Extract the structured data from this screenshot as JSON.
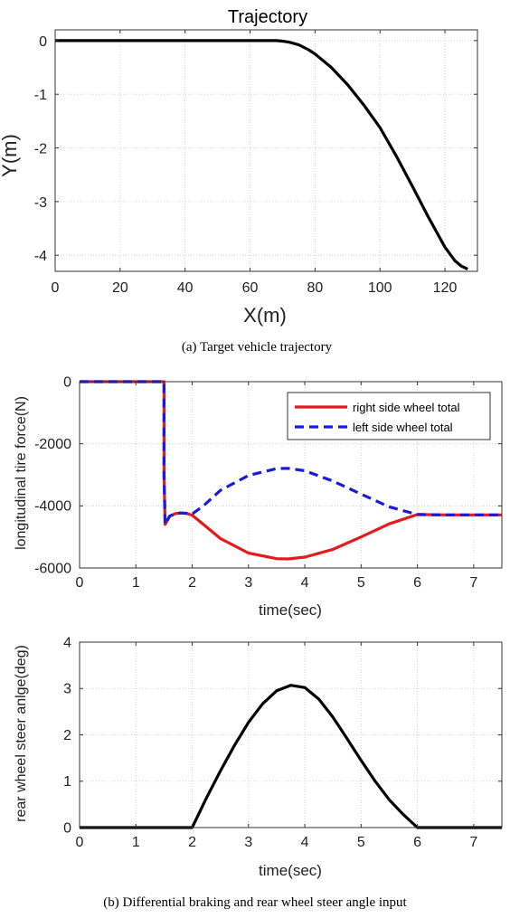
{
  "chart_data": [
    {
      "type": "line",
      "title": "Trajectory",
      "xlabel": "X(m)",
      "ylabel": "Y(m)",
      "xlim": [
        0,
        130
      ],
      "ylim": [
        -4.3,
        0.2
      ],
      "xticks": [
        0,
        20,
        40,
        60,
        80,
        100,
        120
      ],
      "yticks": [
        0,
        -1,
        -2,
        -3,
        -4
      ],
      "grid": true,
      "series": [
        {
          "color": "#000000",
          "dash": "solid",
          "x": [
            0,
            20,
            40,
            60,
            65,
            68,
            70,
            72,
            75,
            78,
            80,
            85,
            90,
            95,
            100,
            105,
            110,
            115,
            120,
            123,
            125,
            127
          ],
          "y": [
            0,
            0,
            0,
            0,
            0,
            0,
            -0.01,
            -0.03,
            -0.08,
            -0.17,
            -0.25,
            -0.5,
            -0.82,
            -1.2,
            -1.62,
            -2.15,
            -2.72,
            -3.3,
            -3.85,
            -4.1,
            -4.2,
            -4.26
          ]
        }
      ],
      "caption": "(a) Target vehicle trajectory"
    },
    {
      "type": "line",
      "ylabel": "longitudinal tire force(N)",
      "xlabel": "",
      "xlim": [
        0,
        7.5
      ],
      "ylim": [
        -6000,
        0
      ],
      "xticks": [
        0,
        1,
        2,
        3,
        4,
        5,
        6,
        7
      ],
      "yticks": [
        0,
        -2000,
        -4000,
        -6000
      ],
      "grid": true,
      "legend": "top-right",
      "series": [
        {
          "name": "right side wheel total",
          "color": "#e41a1c",
          "dash": "solid",
          "x": [
            0,
            1.5,
            1.5,
            1.52,
            1.6,
            1.7,
            1.8,
            1.9,
            2.0,
            2.2,
            2.5,
            3.0,
            3.5,
            3.7,
            4.0,
            4.5,
            5.0,
            5.5,
            6.0,
            6.5,
            7.0,
            7.5
          ],
          "y": [
            0,
            0,
            -3000,
            -4600,
            -4330,
            -4250,
            -4230,
            -4240,
            -4300,
            -4600,
            -5050,
            -5520,
            -5700,
            -5710,
            -5650,
            -5400,
            -5000,
            -4580,
            -4280,
            -4290,
            -4290,
            -4290
          ]
        },
        {
          "name": "left side wheel total",
          "color": "#1a1adc",
          "dash": "dashed",
          "x": [
            0,
            1.5,
            1.5,
            1.52,
            1.6,
            1.7,
            1.8,
            1.9,
            2.0,
            2.2,
            2.5,
            3.0,
            3.5,
            3.7,
            4.0,
            4.5,
            5.0,
            5.5,
            6.0,
            6.5,
            7.0,
            7.5
          ],
          "y": [
            0,
            0,
            -3000,
            -4600,
            -4330,
            -4250,
            -4230,
            -4240,
            -4260,
            -4000,
            -3500,
            -3020,
            -2800,
            -2790,
            -2870,
            -3200,
            -3620,
            -4030,
            -4280,
            -4290,
            -4290,
            -4290
          ]
        }
      ]
    },
    {
      "type": "line",
      "ylabel": "rear wheel steer anlge(deg)",
      "xlabel": "time(sec)",
      "xlim": [
        0,
        7.5
      ],
      "ylim": [
        0,
        4
      ],
      "xticks": [
        0,
        1,
        2,
        3,
        4,
        5,
        6,
        7
      ],
      "yticks": [
        0,
        1,
        2,
        3,
        4
      ],
      "grid": true,
      "series": [
        {
          "color": "#000000",
          "dash": "solid",
          "x": [
            0,
            2.0,
            2.25,
            2.5,
            2.75,
            3.0,
            3.25,
            3.5,
            3.75,
            4.0,
            4.25,
            4.5,
            4.75,
            5.0,
            5.25,
            5.5,
            5.75,
            6.0,
            7.5
          ],
          "y": [
            0,
            0,
            0.63,
            1.22,
            1.77,
            2.27,
            2.67,
            2.95,
            3.07,
            3.02,
            2.77,
            2.38,
            1.92,
            1.45,
            1.0,
            0.6,
            0.28,
            0,
            0
          ]
        }
      ],
      "caption": "(b) Differential braking and rear wheel steer angle input"
    }
  ],
  "middle_xlabel": "time(sec)"
}
